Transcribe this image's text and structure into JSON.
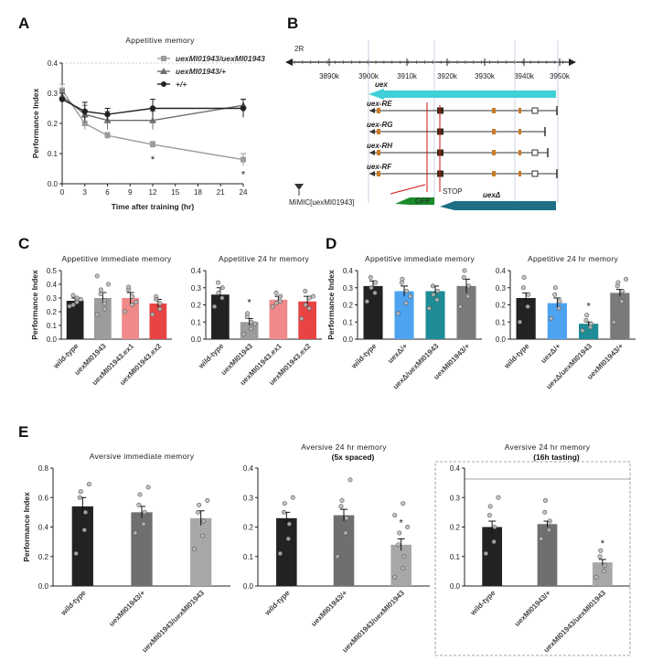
{
  "panels": {
    "A": {
      "label": "A"
    },
    "B": {
      "label": "B"
    },
    "C": {
      "label": "C"
    },
    "D": {
      "label": "D"
    },
    "E": {
      "label": "E"
    }
  },
  "genome": {
    "chrom": "2R",
    "ticks": [
      "3890k",
      "3900k",
      "3910k",
      "3920k",
      "3930k",
      "3940k",
      "3950k"
    ],
    "gene_label": "uex",
    "transcripts": [
      "uex-RE",
      "uex-RG",
      "uex-RH",
      "uex-RF"
    ],
    "mimic_label": "MiMIC[uexMI01943]",
    "stop_label": "STOP",
    "gfp_label": "GFP",
    "fusion_label": "uexΔ",
    "colors": {
      "gene": "#3fd0d8",
      "gfp": "#1a8a2a",
      "fusion": "#1e6f86",
      "mimic_line": "#cc1111",
      "exon_orange": "#c97a28",
      "exon_dark": "#3a2a1a"
    }
  },
  "chart_data": [
    {
      "id": "A",
      "type": "line",
      "title": "Appetitive memory",
      "xlabel": "Time after training (hr)",
      "ylabel": "Performance Index",
      "x_ticks": [
        "0",
        "3",
        "6",
        "9",
        "12",
        "15",
        "18",
        "21",
        "24"
      ],
      "x": [
        0,
        3,
        6,
        12,
        24
      ],
      "xlim": [
        0,
        24
      ],
      "ylim": [
        0,
        0.4
      ],
      "y_ticks": [
        "0.0",
        "0.1",
        "0.2",
        "0.3",
        "0.4"
      ],
      "grid": false,
      "legend": "top-right",
      "series": [
        {
          "name": "uexMI01943/uexMI01943",
          "values": [
            0.31,
            0.2,
            0.16,
            0.13,
            0.08
          ],
          "errors": [
            0.02,
            0.02,
            0.01,
            0.01,
            0.02
          ],
          "color": "#9c9c9c",
          "marker": "square"
        },
        {
          "name": "uexMI01943/+",
          "values": [
            0.29,
            0.23,
            0.21,
            0.21,
            0.26
          ],
          "errors": [
            0.02,
            0.03,
            0.03,
            0.03,
            0.02
          ],
          "color": "#6f6f6f",
          "marker": "triangle"
        },
        {
          "name": "+/+",
          "values": [
            0.28,
            0.24,
            0.23,
            0.25,
            0.25
          ],
          "errors": [
            0.02,
            0.03,
            0.02,
            0.03,
            0.03
          ],
          "color": "#222222",
          "marker": "circle"
        }
      ],
      "annotations": [
        {
          "x": 12,
          "text": "*"
        },
        {
          "x": 24,
          "text": "*"
        }
      ]
    },
    {
      "id": "C1",
      "type": "bar",
      "title": "Appetitive immediate memory",
      "ylabel": "Performance Index",
      "categories": [
        "wild-type",
        "uexMI01943",
        "uexMI01943.ex1",
        "uexMI01943.ex2"
      ],
      "values": [
        0.28,
        0.3,
        0.3,
        0.26
      ],
      "errors": [
        0.02,
        0.04,
        0.04,
        0.03
      ],
      "colors": [
        "#222222",
        "#9c9c9c",
        "#f08a8a",
        "#e84444"
      ],
      "ylim": [
        0,
        0.5
      ],
      "y_ticks": [
        "0.0",
        "0.1",
        "0.2",
        "0.3",
        "0.4",
        "0.5"
      ],
      "stars": [],
      "points": [
        [
          0.24,
          0.27,
          0.3,
          0.32,
          0.25,
          0.29
        ],
        [
          0.18,
          0.22,
          0.28,
          0.33,
          0.36,
          0.4,
          0.46,
          0.26
        ],
        [
          0.2,
          0.25,
          0.31,
          0.36,
          0.38,
          0.27
        ],
        [
          0.18,
          0.22,
          0.26,
          0.31,
          0.29
        ]
      ]
    },
    {
      "id": "C2",
      "type": "bar",
      "title": "Appetitive 24 hr memory",
      "categories": [
        "wild-type",
        "uexMI01943",
        "uexMI01943.ex1",
        "uexMI01943.ex2"
      ],
      "values": [
        0.26,
        0.1,
        0.23,
        0.22
      ],
      "errors": [
        0.04,
        0.02,
        0.02,
        0.03
      ],
      "colors": [
        "#222222",
        "#9c9c9c",
        "#f08a8a",
        "#e84444"
      ],
      "ylim": [
        0,
        0.4
      ],
      "y_ticks": [
        "0.0",
        "0.1",
        "0.2",
        "0.3",
        "0.4"
      ],
      "stars": [
        1
      ],
      "points": [
        [
          0.19,
          0.24,
          0.3,
          0.33,
          0.27
        ],
        [
          0.03,
          0.06,
          0.1,
          0.13,
          0.15,
          0.09
        ],
        [
          0.19,
          0.22,
          0.25,
          0.27,
          0.21
        ],
        [
          0.12,
          0.18,
          0.24,
          0.28,
          0.2,
          0.25
        ]
      ]
    },
    {
      "id": "D1",
      "type": "bar",
      "title": "Appetitive immediate memory",
      "ylabel": "Performance Index",
      "categories": [
        "wild-type",
        "uexΔ/+",
        "uexΔ/uexMI01943",
        "uexMI01943/+"
      ],
      "values": [
        0.31,
        0.28,
        0.28,
        0.31
      ],
      "errors": [
        0.03,
        0.03,
        0.03,
        0.04
      ],
      "colors": [
        "#222222",
        "#4da3f0",
        "#1e8c96",
        "#7a7a7a"
      ],
      "ylim": [
        0,
        0.4
      ],
      "y_ticks": [
        "0.0",
        "0.1",
        "0.2",
        "0.3",
        "0.4"
      ],
      "stars": [],
      "points": [
        [
          0.22,
          0.27,
          0.33,
          0.36,
          0.3
        ],
        [
          0.15,
          0.21,
          0.28,
          0.33,
          0.35,
          0.25
        ],
        [
          0.18,
          0.23,
          0.28,
          0.31,
          0.26
        ],
        [
          0.19,
          0.25,
          0.31,
          0.36,
          0.4
        ]
      ]
    },
    {
      "id": "D2",
      "type": "bar",
      "title": "Appetitive 24 hr memory",
      "categories": [
        "wild-type",
        "uexΔ/+",
        "uexΔ/uexMI01943",
        "uexMI01943/+"
      ],
      "values": [
        0.24,
        0.21,
        0.09,
        0.27
      ],
      "errors": [
        0.03,
        0.03,
        0.01,
        0.02
      ],
      "colors": [
        "#222222",
        "#4da3f0",
        "#1e8c96",
        "#7a7a7a"
      ],
      "ylim": [
        0,
        0.4
      ],
      "y_ticks": [
        "0.0",
        "0.1",
        "0.2",
        "0.3",
        "0.4"
      ],
      "stars": [
        2
      ],
      "points": [
        [
          0.1,
          0.19,
          0.26,
          0.3,
          0.36
        ],
        [
          0.12,
          0.18,
          0.22,
          0.26,
          0.3
        ],
        [
          0.05,
          0.07,
          0.09,
          0.11,
          0.14
        ],
        [
          0.1,
          0.22,
          0.28,
          0.31,
          0.33,
          0.35
        ]
      ]
    },
    {
      "id": "E1",
      "type": "bar",
      "title": "Aversive immediate memory",
      "ylabel": "Performance Index",
      "categories": [
        "wild-type",
        "uexMI01943/+",
        "uexMI01943/uexMI01943"
      ],
      "values": [
        0.54,
        0.5,
        0.46
      ],
      "errors": [
        0.06,
        0.04,
        0.05
      ],
      "colors": [
        "#222222",
        "#6f6f6f",
        "#a8a8a8"
      ],
      "ylim": [
        0,
        0.8
      ],
      "y_ticks": [
        "0.0",
        "0.2",
        "0.4",
        "0.6",
        "0.8"
      ],
      "stars": [],
      "points": [
        [
          0.22,
          0.38,
          0.5,
          0.6,
          0.64,
          0.69
        ],
        [
          0.36,
          0.42,
          0.5,
          0.55,
          0.62,
          0.67
        ],
        [
          0.25,
          0.34,
          0.44,
          0.5,
          0.55,
          0.58
        ]
      ]
    },
    {
      "id": "E2",
      "type": "bar",
      "title": "Aversive 24 hr memory",
      "subtitle": "(5x spaced)",
      "categories": [
        "wild-type",
        "uexMI01943/+",
        "uexMI01943/uexMI01943"
      ],
      "values": [
        0.23,
        0.24,
        0.14
      ],
      "errors": [
        0.02,
        0.02,
        0.02
      ],
      "colors": [
        "#222222",
        "#6f6f6f",
        "#a8a8a8"
      ],
      "ylim": [
        0,
        0.4
      ],
      "y_ticks": [
        "0.0",
        "0.1",
        "0.2",
        "0.3",
        "0.4"
      ],
      "stars": [
        2
      ],
      "points": [
        [
          0.11,
          0.16,
          0.21,
          0.25,
          0.28,
          0.3
        ],
        [
          0.1,
          0.18,
          0.23,
          0.27,
          0.29,
          0.36
        ],
        [
          0.03,
          0.06,
          0.1,
          0.14,
          0.18,
          0.2,
          0.24,
          0.28
        ]
      ]
    },
    {
      "id": "E3",
      "type": "bar",
      "title": "Aversive 24 hr memory",
      "subtitle": "(16h tasting)",
      "categories": [
        "wild-type",
        "uexMI01943/+",
        "uexMI01943/uexMI01943"
      ],
      "values": [
        0.2,
        0.21,
        0.08
      ],
      "errors": [
        0.02,
        0.01,
        0.01
      ],
      "colors": [
        "#222222",
        "#6f6f6f",
        "#a8a8a8"
      ],
      "ylim": [
        0,
        0.4
      ],
      "y_ticks": [
        "0.0",
        "0.1",
        "0.2",
        "0.3",
        "0.4"
      ],
      "stars": [
        2
      ],
      "points": [
        [
          0.11,
          0.15,
          0.2,
          0.24,
          0.27,
          0.3
        ],
        [
          0.16,
          0.19,
          0.22,
          0.25,
          0.29
        ],
        [
          0.03,
          0.05,
          0.07,
          0.1,
          0.12
        ]
      ]
    }
  ]
}
